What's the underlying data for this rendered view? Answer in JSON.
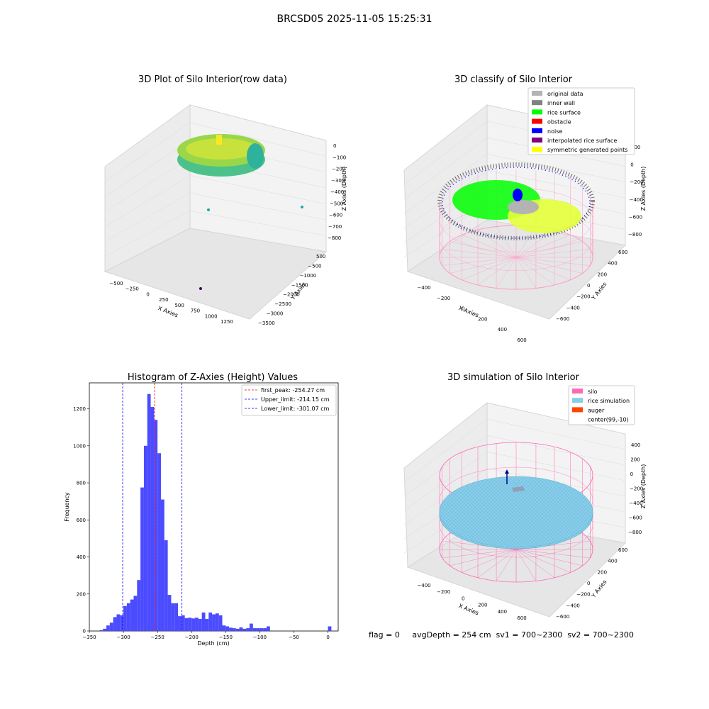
{
  "figure": {
    "suptitle": "BRCSD05 2025-11-05 15:25:31",
    "footer": "flag = 0     avgDepth = 254 cm  sv1 = 700~2300  sv2 = 700~2300"
  },
  "colors": {
    "hist_bar": "#4b4bff",
    "peak_line": "#ff0000",
    "limit_line": "#0000ff",
    "pane": "#f2f2f2",
    "wall_mesh": "#ff9ac8",
    "rice": "#87ceeb",
    "silo": "#ff69b4",
    "auger": "#ff4500"
  },
  "panels": {
    "raw": {
      "title": "3D Plot of Silo Interior(row data)",
      "xlabel": "X Axies",
      "ylabel": "Y Axies",
      "zlabel": "Z Axies (Depth)",
      "xticks": [
        "−500",
        "−250",
        "0",
        "250",
        "500",
        "750",
        "1000",
        "1250"
      ],
      "yticks": [
        "500",
        "−500",
        "−1000",
        "−1500",
        "−2000",
        "−2500",
        "−3000",
        "−3500"
      ],
      "zticks": [
        "0",
        "−100",
        "−200",
        "−300",
        "−400",
        "−500",
        "−600",
        "−700",
        "−800"
      ]
    },
    "classify": {
      "title": "3D classify of Silo Interior",
      "xlabel": "X Axies",
      "ylabel": "Y Axies",
      "zlabel": "Z Axies (Depth)",
      "xticks": [
        "−400",
        "−200",
        "0",
        "200",
        "400",
        "600"
      ],
      "yticks": [
        "600",
        "400",
        "200",
        "0",
        "−200",
        "−400",
        "−600"
      ],
      "zticks": [
        "200",
        "0",
        "−200",
        "−400",
        "−600",
        "−800"
      ],
      "legend": [
        {
          "label": "original data",
          "color": "#b3b3b3"
        },
        {
          "label": "inner wall",
          "color": "#808080"
        },
        {
          "label": "rice surface",
          "color": "#00ff00"
        },
        {
          "label": "obstacle",
          "color": "#ff0000"
        },
        {
          "label": "noise",
          "color": "#0000ff"
        },
        {
          "label": "interpolated rice surface",
          "color": "#800080"
        },
        {
          "label": "symmetric generated points",
          "color": "#ffff00"
        }
      ]
    },
    "simulation": {
      "title": "3D simulation of Silo Interior",
      "xlabel": "X Axies",
      "ylabel": "Y Axies",
      "zlabel": "Z Axies (Depth)",
      "xticks": [
        "−400",
        "−200",
        "0",
        "200",
        "400",
        "600"
      ],
      "yticks": [
        "600",
        "400",
        "200",
        "0",
        "−200",
        "−400",
        "−600"
      ],
      "zticks": [
        "400",
        "200",
        "0",
        "−200",
        "−400",
        "−600",
        "−800"
      ],
      "legend": [
        {
          "label": "silo",
          "color": "#ff69b4"
        },
        {
          "label": "rice simulation",
          "color": "#87ceeb"
        },
        {
          "label": "auger",
          "color": "#ff4500"
        },
        {
          "label": "center(99,-10)",
          "color": "#ffffff"
        }
      ]
    }
  },
  "chart_data": {
    "type": "bar",
    "title": "Histogram of Z-Axies (Height) Values",
    "xlabel": "Depth (cm)",
    "ylabel": "Frequency",
    "xlim": [
      -350,
      15
    ],
    "ylim": [
      0,
      1340
    ],
    "xticks": [
      -350,
      -300,
      -250,
      -200,
      -150,
      -100,
      -50,
      0
    ],
    "yticks": [
      0,
      200,
      400,
      600,
      800,
      1000,
      1200
    ],
    "bin_width": 5,
    "bins": [
      [
        -335,
        5
      ],
      [
        -330,
        12
      ],
      [
        -325,
        30
      ],
      [
        -320,
        45
      ],
      [
        -315,
        75
      ],
      [
        -310,
        90
      ],
      [
        -305,
        85
      ],
      [
        -300,
        135
      ],
      [
        -295,
        150
      ],
      [
        -290,
        170
      ],
      [
        -285,
        190
      ],
      [
        -280,
        275
      ],
      [
        -275,
        775
      ],
      [
        -270,
        1000
      ],
      [
        -265,
        1280
      ],
      [
        -260,
        1210
      ],
      [
        -255,
        1140
      ],
      [
        -250,
        960
      ],
      [
        -245,
        710
      ],
      [
        -240,
        490
      ],
      [
        -235,
        195
      ],
      [
        -230,
        150
      ],
      [
        -225,
        150
      ],
      [
        -220,
        80
      ],
      [
        -215,
        85
      ],
      [
        -210,
        70
      ],
      [
        -205,
        72
      ],
      [
        -200,
        68
      ],
      [
        -195,
        72
      ],
      [
        -190,
        65
      ],
      [
        -185,
        100
      ],
      [
        -180,
        65
      ],
      [
        -175,
        100
      ],
      [
        -170,
        90
      ],
      [
        -165,
        95
      ],
      [
        -160,
        85
      ],
      [
        -155,
        30
      ],
      [
        -150,
        25
      ],
      [
        -145,
        18
      ],
      [
        -140,
        15
      ],
      [
        -135,
        12
      ],
      [
        -130,
        20
      ],
      [
        -125,
        12
      ],
      [
        -120,
        15
      ],
      [
        -115,
        40
      ],
      [
        -110,
        15
      ],
      [
        -105,
        15
      ],
      [
        -100,
        15
      ],
      [
        -95,
        15
      ],
      [
        -90,
        25
      ],
      [
        -85,
        0
      ],
      [
        -80,
        0
      ],
      [
        -75,
        0
      ],
      [
        -70,
        0
      ],
      [
        -65,
        0
      ],
      [
        -60,
        0
      ],
      [
        -55,
        0
      ],
      [
        -50,
        0
      ],
      [
        -45,
        0
      ],
      [
        -40,
        0
      ],
      [
        -35,
        0
      ],
      [
        -30,
        0
      ],
      [
        -25,
        0
      ],
      [
        -20,
        0
      ],
      [
        -15,
        0
      ],
      [
        -10,
        0
      ],
      [
        -5,
        0
      ],
      [
        0,
        25
      ]
    ],
    "lines": [
      {
        "label": "first_peak: -254.27 cm",
        "x": -254.27,
        "color": "#ff0000"
      },
      {
        "label": "Upper_limit: -214.15 cm",
        "x": -214.15,
        "color": "#0000ff"
      },
      {
        "label": "Lower_limit: -301.07 cm",
        "x": -301.07,
        "color": "#0000ff"
      }
    ]
  }
}
